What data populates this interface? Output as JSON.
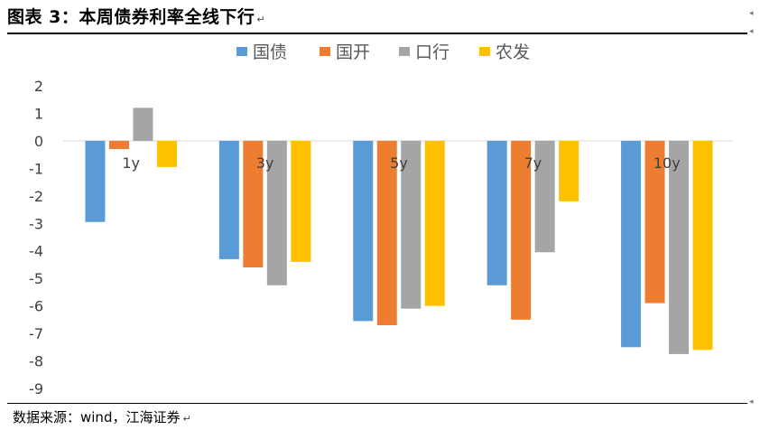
{
  "title": "图表 3：本周债券利率全线下行",
  "return_mark": "↵",
  "source": "数据来源：wind，江海证券",
  "chart_data": {
    "type": "bar",
    "categories": [
      "1y",
      "3y",
      "5y",
      "7y",
      "10y"
    ],
    "series": [
      {
        "name": "国债",
        "color": "#5B9BD5",
        "values": [
          -2.95,
          -4.3,
          -6.55,
          -5.25,
          -7.5
        ]
      },
      {
        "name": "国开",
        "color": "#ED7D31",
        "values": [
          -0.3,
          -4.6,
          -6.7,
          -6.5,
          -5.9
        ]
      },
      {
        "name": "口行",
        "color": "#A5A5A5",
        "values": [
          1.2,
          -5.25,
          -6.1,
          -4.05,
          -7.75
        ]
      },
      {
        "name": "农发",
        "color": "#FFC000",
        "values": [
          -0.95,
          -4.4,
          -6.0,
          -2.2,
          -7.6
        ]
      }
    ],
    "ylim": [
      -9,
      2
    ],
    "yticks": [
      2,
      1,
      0,
      -1,
      -2,
      -3,
      -4,
      -5,
      -6,
      -7,
      -8,
      -9
    ],
    "legend_position": "top",
    "grid": false
  }
}
